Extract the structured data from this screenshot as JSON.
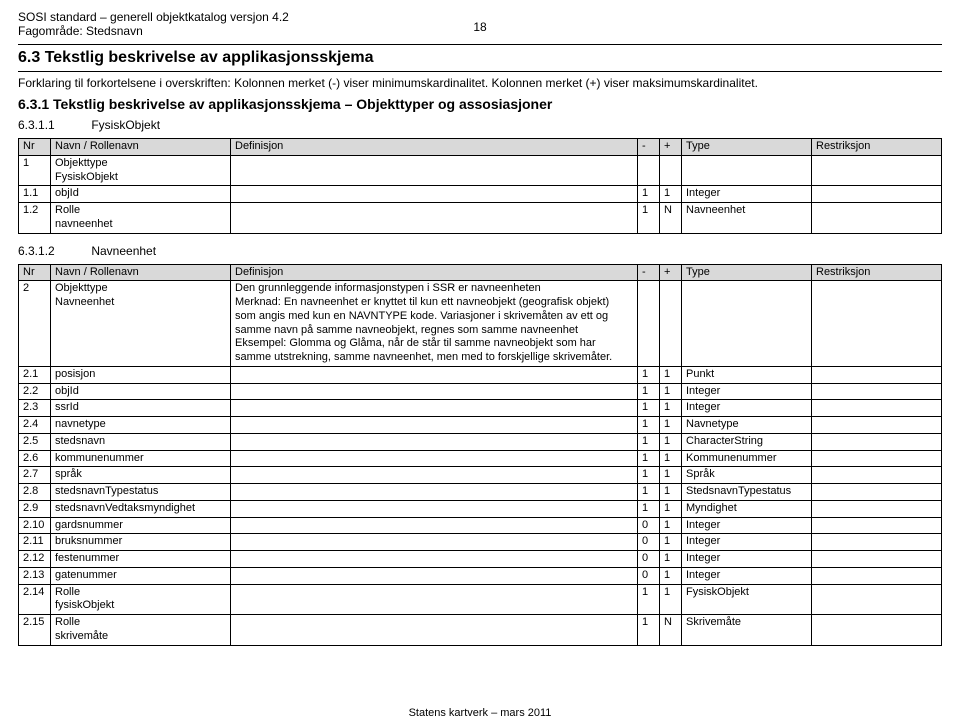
{
  "header": {
    "line1": "SOSI standard – generell objektkatalog versjon 4.2",
    "line2": "Fagområde: Stedsnavn",
    "page_number": "18"
  },
  "section": {
    "h1": "6.3 Tekstlig beskrivelse av applikasjonsskjema",
    "intro": "Forklaring til forkortelsene i overskriften: Kolonnen merket (-) viser minimumskardinalitet. Kolonnen merket (+) viser maksimumskardinalitet.",
    "h2": "6.3.1 Tekstlig beskrivelse av applikasjonsskjema – Objekttyper og assosiasjoner",
    "h3a_num": "6.3.1.1",
    "h3a_title": "FysiskObjekt",
    "h3b_num": "6.3.1.2",
    "h3b_title": "Navneenhet"
  },
  "columns": {
    "nr": "Nr",
    "navn": "Navn / Rollenavn",
    "def": "Definisjon",
    "minus": "-",
    "plus": "+",
    "type": "Type",
    "rest": "Restriksjon"
  },
  "table1": {
    "rows": [
      {
        "nr": "1",
        "navn": "Objekttype\nFysiskObjekt",
        "def": "",
        "m": "",
        "p": "",
        "type": "",
        "rest": ""
      },
      {
        "nr": "1.1",
        "navn": "objId",
        "def": "",
        "m": "1",
        "p": "1",
        "type": "Integer",
        "rest": ""
      },
      {
        "nr": "1.2",
        "navn": "Rolle\nnavneenhet",
        "def": "",
        "m": "1",
        "p": "N",
        "type": "Navneenhet",
        "rest": ""
      }
    ]
  },
  "table2": {
    "rows": [
      {
        "nr": "2",
        "navn": "Objekttype\nNavneenhet",
        "def": "Den grunnleggende informasjonstypen i SSR er navneenheten\nMerknad: En navneenhet er knyttet til kun ett navneobjekt (geografisk objekt) som angis med kun en NAVNTYPE kode. Variasjoner i skrivemåten av ett og samme navn på samme navneobjekt, regnes som samme navneenhet\nEksempel: Glomma og Glåma, når de står til samme navneobjekt som har samme utstrekning, samme navneenhet, men med to forskjellige skrivemåter.",
        "m": "",
        "p": "",
        "type": "",
        "rest": ""
      },
      {
        "nr": "2.1",
        "navn": "posisjon",
        "def": "",
        "m": "1",
        "p": "1",
        "type": "Punkt",
        "rest": ""
      },
      {
        "nr": "2.2",
        "navn": "objId",
        "def": "",
        "m": "1",
        "p": "1",
        "type": "Integer",
        "rest": ""
      },
      {
        "nr": "2.3",
        "navn": "ssrId",
        "def": "",
        "m": "1",
        "p": "1",
        "type": "Integer",
        "rest": ""
      },
      {
        "nr": "2.4",
        "navn": "navnetype",
        "def": "",
        "m": "1",
        "p": "1",
        "type": "Navnetype",
        "rest": ""
      },
      {
        "nr": "2.5",
        "navn": "stedsnavn",
        "def": "",
        "m": "1",
        "p": "1",
        "type": "CharacterString",
        "rest": ""
      },
      {
        "nr": "2.6",
        "navn": "kommunenummer",
        "def": "",
        "m": "1",
        "p": "1",
        "type": "Kommunenummer",
        "rest": ""
      },
      {
        "nr": "2.7",
        "navn": "språk",
        "def": "",
        "m": "1",
        "p": "1",
        "type": "Språk",
        "rest": ""
      },
      {
        "nr": "2.8",
        "navn": "stedsnavnTypestatus",
        "def": "",
        "m": "1",
        "p": "1",
        "type": "StedsnavnTypestatus",
        "rest": ""
      },
      {
        "nr": "2.9",
        "navn": "stedsnavnVedtaksmyndighet",
        "def": "",
        "m": "1",
        "p": "1",
        "type": "Myndighet",
        "rest": ""
      },
      {
        "nr": "2.10",
        "navn": "gardsnummer",
        "def": "",
        "m": "0",
        "p": "1",
        "type": "Integer",
        "rest": ""
      },
      {
        "nr": "2.11",
        "navn": "bruksnummer",
        "def": "",
        "m": "0",
        "p": "1",
        "type": "Integer",
        "rest": ""
      },
      {
        "nr": "2.12",
        "navn": "festenummer",
        "def": "",
        "m": "0",
        "p": "1",
        "type": "Integer",
        "rest": ""
      },
      {
        "nr": "2.13",
        "navn": "gatenummer",
        "def": "",
        "m": "0",
        "p": "1",
        "type": "Integer",
        "rest": ""
      },
      {
        "nr": "2.14",
        "navn": "Rolle\nfysiskObjekt",
        "def": "",
        "m": "1",
        "p": "1",
        "type": "FysiskObjekt",
        "rest": ""
      },
      {
        "nr": "2.15",
        "navn": "Rolle\nskrivemåte",
        "def": "",
        "m": "1",
        "p": "N",
        "type": "Skrivemåte",
        "rest": ""
      }
    ]
  },
  "footer": "Statens kartverk – mars 2011"
}
